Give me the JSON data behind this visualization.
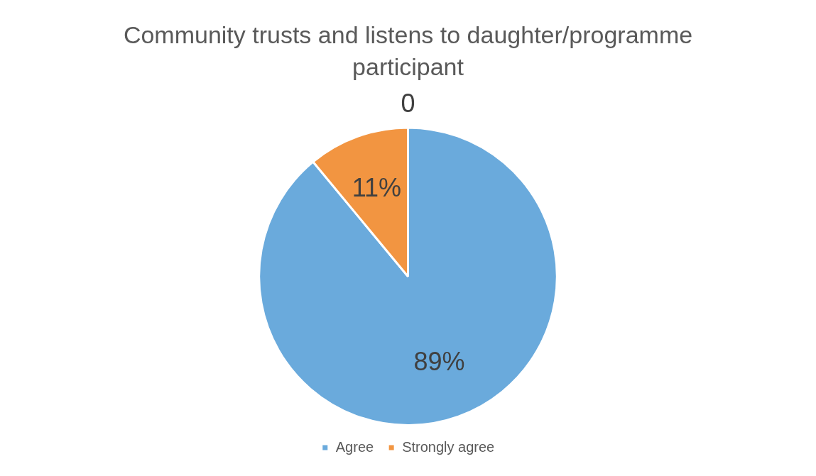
{
  "chart_data": {
    "type": "pie",
    "title": "Community trusts and listens to daughter/programme participant",
    "categories": [
      "Agree",
      "Strongly agree"
    ],
    "values": [
      89,
      11
    ],
    "colors": [
      "#6aaadc",
      "#f29541"
    ],
    "value_labels": [
      "89%",
      "11%"
    ],
    "annotations": [
      "0"
    ],
    "legend": "bottom"
  }
}
